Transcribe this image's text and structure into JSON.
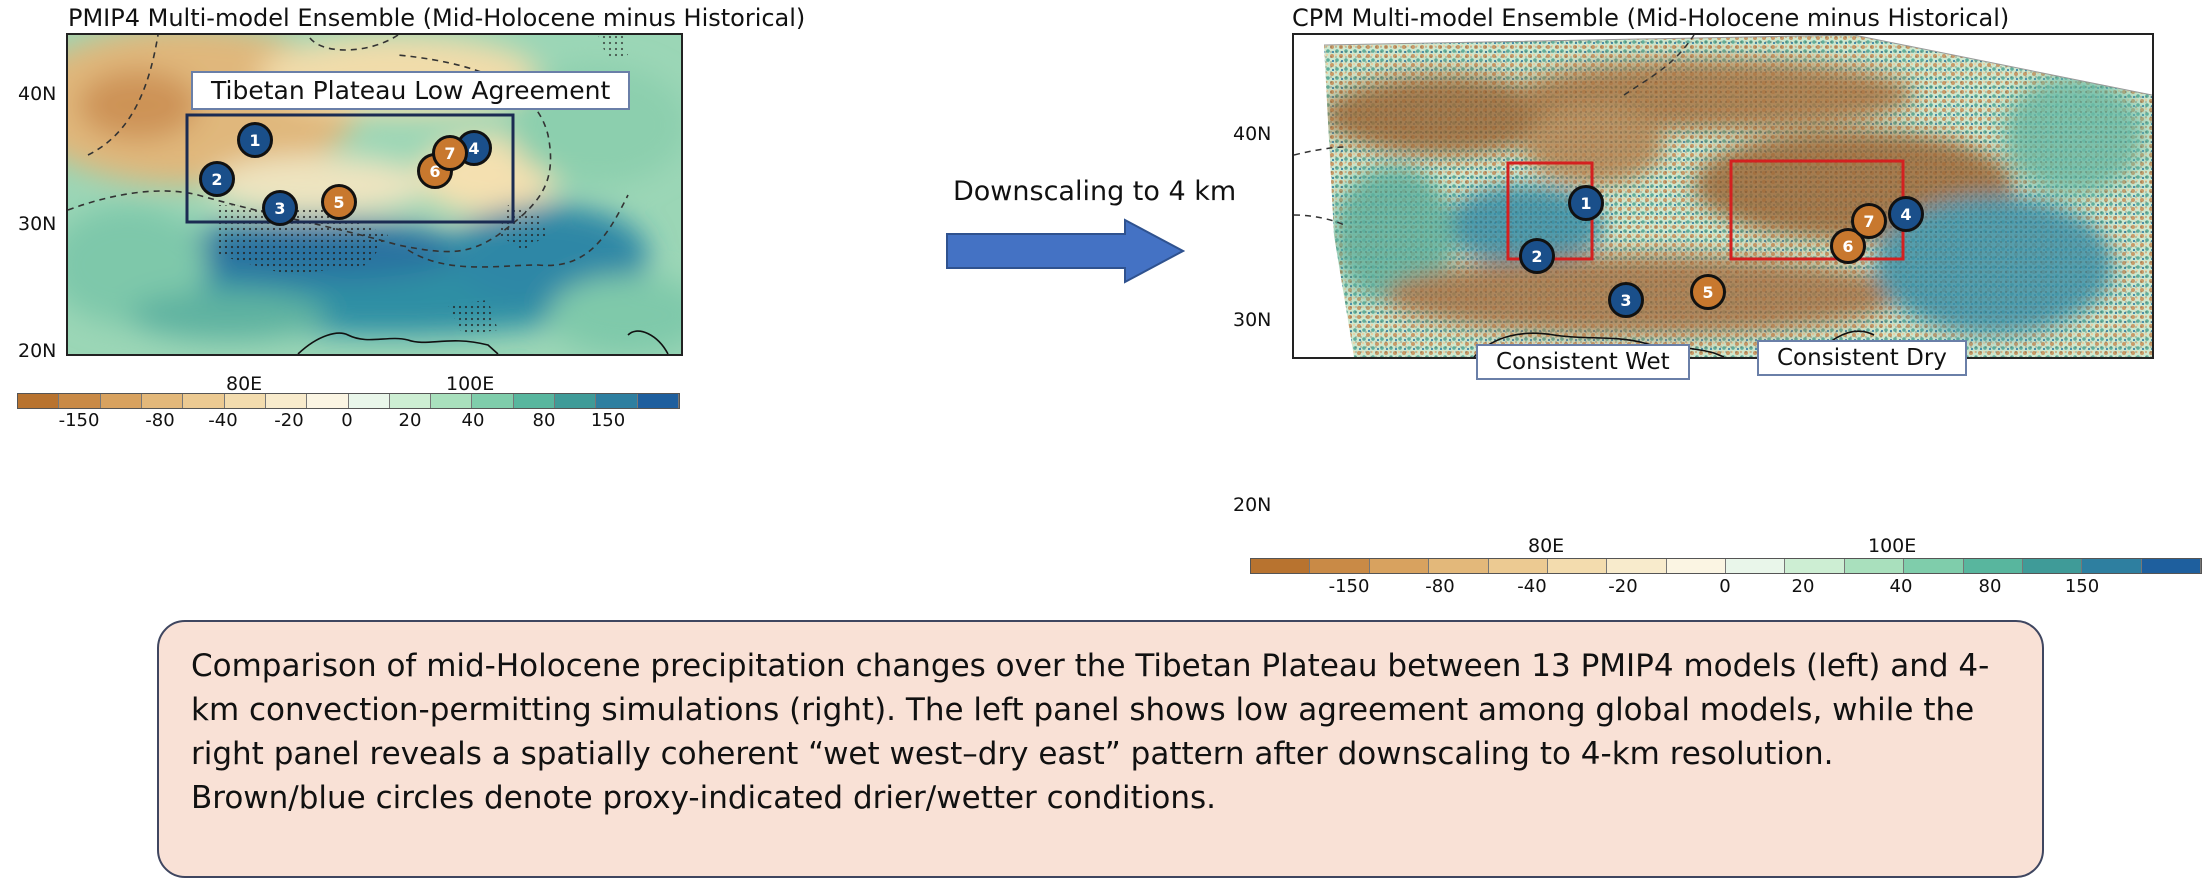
{
  "left_panel": {
    "title": "PMIP4 Multi-model Ensemble (Mid-Holocene minus Historical)",
    "annotation": "Tibetan Plateau Low Agreement",
    "lat_labels": [
      "40N",
      "30N",
      "20N"
    ],
    "lon_labels": [
      "80E",
      "100E"
    ],
    "markers": [
      {
        "num": "1",
        "type": "wetter",
        "color": "#1a4f8a"
      },
      {
        "num": "2",
        "type": "wetter",
        "color": "#1a4f8a"
      },
      {
        "num": "3",
        "type": "wetter",
        "color": "#1a4f8a"
      },
      {
        "num": "4",
        "type": "wetter",
        "color": "#1a4f8a"
      },
      {
        "num": "5",
        "type": "drier",
        "color": "#c8782e"
      },
      {
        "num": "6",
        "type": "drier",
        "color": "#c8782e"
      },
      {
        "num": "7",
        "type": "drier",
        "color": "#c8782e"
      }
    ],
    "colorbar_ticks": [
      "-150",
      "-80",
      "-40",
      "-20",
      "0",
      "20",
      "40",
      "80",
      "150"
    ]
  },
  "arrow": {
    "label": "Downscaling to 4 km",
    "color": "#4472c4"
  },
  "right_panel": {
    "title": "CPM Multi-model Ensemble (Mid-Holocene minus Historical)",
    "annotation_wet": "Consistent Wet",
    "annotation_dry": "Consistent Dry",
    "lat_labels": [
      "40N",
      "30N",
      "20N"
    ],
    "lon_labels": [
      "80E",
      "100E"
    ],
    "markers": [
      {
        "num": "1",
        "type": "wetter",
        "color": "#1a4f8a"
      },
      {
        "num": "2",
        "type": "wetter",
        "color": "#1a4f8a"
      },
      {
        "num": "3",
        "type": "wetter",
        "color": "#1a4f8a"
      },
      {
        "num": "4",
        "type": "wetter",
        "color": "#1a4f8a"
      },
      {
        "num": "5",
        "type": "drier",
        "color": "#c8782e"
      },
      {
        "num": "6",
        "type": "drier",
        "color": "#c8782e"
      },
      {
        "num": "7",
        "type": "drier",
        "color": "#c8782e"
      }
    ],
    "colorbar_ticks": [
      "-150",
      "-80",
      "-40",
      "-20",
      "0",
      "20",
      "40",
      "80",
      "150"
    ]
  },
  "colorbar_colors": [
    "#b8732f",
    "#c98a46",
    "#d8a25f",
    "#e3b87a",
    "#ecca92",
    "#f3dcae",
    "#f8ebcc",
    "#fbf5e3",
    "#e9f6ea",
    "#cdeed3",
    "#a9e0bd",
    "#7fcdab",
    "#58b69e",
    "#3f9b98",
    "#2e7fa0",
    "#1e5f9e"
  ],
  "caption": {
    "text": "Comparison of mid-Holocene precipitation changes over the Tibetan Plateau between 13 PMIP4 models (left) and 4-km convection-permitting simulations (right). The left panel shows low agreement among global models, while the right panel reveals a spatially coherent “wet west–dry east” pattern after downscaling to 4-km resolution. Brown/blue circles denote proxy-indicated drier/wetter conditions."
  }
}
